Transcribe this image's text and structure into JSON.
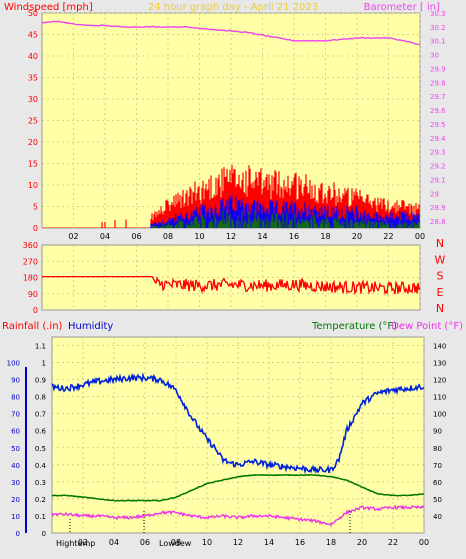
{
  "colors": {
    "plot_bg": "#ffffa8",
    "page_bg": "#e8e8e8",
    "grid": "#d6c27a",
    "wind_gust": "#ff0000",
    "wind_avg": "#0000ff",
    "wind_low": "#008000",
    "barometer": "#ee44ee",
    "direction": "#ff0000",
    "humidity": "#0022dd",
    "temperature": "#007700",
    "dewpoint": "#ee33ee",
    "title": "#eecc33",
    "rainfall_axis": "#0000cc"
  },
  "header": {
    "windspeed_label": "Windspeed [mph]",
    "title": "24 hour graph day - April 21 2023",
    "barometer_label": "Barometer [ in]"
  },
  "panel3_header": {
    "rainfall_label": "Rainfall (.in)",
    "humidity_label": "Humidity",
    "temperature_label": "Temperature (°F)",
    "dewpoint_label": "Dew Point (°F)"
  },
  "markers": {
    "high_temp_label": "Hightemp",
    "low_dew_label": "Lowdew"
  },
  "chart_data": [
    {
      "type": "line",
      "name": "wind-barometer",
      "xlabel": "",
      "x_ticks": [
        "02",
        "04",
        "06",
        "08",
        "10",
        "12",
        "14",
        "16",
        "18",
        "20",
        "22",
        "00"
      ],
      "y_left_ticks": [
        0,
        5,
        10,
        15,
        20,
        25,
        30,
        35,
        40,
        45,
        50
      ],
      "ylim_left": [
        0,
        50
      ],
      "y_right_ticks": [
        "28.8",
        "28.9",
        "29",
        "29.1",
        "29.2",
        "29.3",
        "29.4",
        "29.5",
        "29.6",
        "29.7",
        "29.8",
        "29.9",
        "30",
        "30.1",
        "30.2",
        "30.3"
      ],
      "ylim_right": [
        28.75,
        30.3
      ],
      "barometer": {
        "hours": [
          0,
          1,
          2,
          3,
          4,
          5,
          6,
          7,
          8,
          9,
          10,
          11,
          12,
          13,
          14,
          15,
          16,
          17,
          18,
          19,
          20,
          21,
          22,
          23,
          24
        ],
        "values": [
          30.23,
          30.24,
          30.22,
          30.21,
          30.21,
          30.2,
          30.2,
          30.2,
          30.2,
          30.2,
          30.19,
          30.18,
          30.17,
          30.16,
          30.14,
          30.12,
          30.1,
          30.1,
          30.1,
          30.11,
          30.12,
          30.12,
          30.12,
          30.1,
          30.07
        ]
      },
      "wind_gust_envelope": {
        "hours": [
          0,
          2,
          4,
          6,
          7,
          8,
          9,
          10,
          11,
          12,
          13,
          14,
          15,
          16,
          17,
          18,
          19,
          20,
          21,
          22,
          23,
          24
        ],
        "values": [
          1,
          1,
          1,
          1,
          3,
          6,
          8,
          10,
          12,
          13,
          13,
          12,
          12,
          12,
          11,
          10,
          9,
          8,
          7,
          6,
          6,
          5
        ]
      },
      "wind_avg_envelope": {
        "hours": [
          0,
          6,
          7,
          8,
          9,
          10,
          11,
          12,
          13,
          14,
          15,
          16,
          17,
          18,
          19,
          20,
          21,
          22,
          23,
          24
        ],
        "values": [
          0,
          0,
          1,
          2,
          3,
          4,
          5,
          6,
          6,
          5,
          5,
          5,
          5,
          4,
          4,
          4,
          3,
          3,
          3,
          3
        ]
      }
    },
    {
      "type": "line",
      "name": "wind-direction",
      "y_left_ticks": [
        0,
        90,
        180,
        270,
        360
      ],
      "ylim_left": [
        0,
        360
      ],
      "y_right_labels": [
        "N",
        "W",
        "S",
        "E",
        "N"
      ],
      "direction": {
        "hours": [
          0,
          1,
          2,
          3,
          4,
          5,
          6,
          7,
          7.2,
          8,
          10,
          12,
          14,
          16,
          18,
          20,
          22,
          24
        ],
        "values": [
          185,
          185,
          185,
          185,
          185,
          185,
          185,
          185,
          150,
          140,
          135,
          140,
          135,
          140,
          130,
          125,
          120,
          125
        ]
      }
    },
    {
      "type": "line",
      "name": "humidity-temperature",
      "y_left_ticks": [
        0,
        0.1,
        0.2,
        0.3,
        0.4,
        0.5,
        0.6,
        0.7,
        0.8,
        0.9,
        1,
        1.1
      ],
      "ylim_left": [
        0,
        1.15
      ],
      "y_far_left_ticks": [
        0,
        10,
        20,
        30,
        40,
        50,
        60,
        70,
        80,
        90,
        100
      ],
      "y_right_ticks": [
        40,
        50,
        60,
        70,
        80,
        90,
        100,
        110,
        120,
        130,
        140
      ],
      "ylim_right": [
        30,
        145
      ],
      "humidity": {
        "hours": [
          0,
          0.5,
          1,
          2,
          3,
          4,
          5,
          6,
          7,
          8,
          9,
          10,
          10.5,
          11,
          11.5,
          12,
          13,
          14,
          15,
          16,
          17,
          18,
          18.5,
          19,
          20,
          21,
          22,
          23,
          24
        ],
        "values": [
          86,
          85,
          85,
          87,
          89,
          90,
          91,
          91,
          90,
          84,
          68,
          55,
          50,
          43,
          41,
          40,
          42,
          40,
          39,
          38,
          37,
          37,
          43,
          60,
          76,
          82,
          84,
          85,
          86
        ]
      },
      "temperature": {
        "hours": [
          0,
          1,
          2,
          3,
          4,
          5,
          6,
          7,
          8,
          9,
          10,
          11,
          12,
          13,
          14,
          15,
          16,
          17,
          18,
          19,
          20,
          21,
          22,
          23,
          24
        ],
        "values": [
          52,
          52,
          51,
          50,
          49,
          49,
          49,
          49,
          51,
          55,
          59,
          61,
          63,
          64,
          64,
          64,
          64,
          64,
          63,
          61,
          57,
          53,
          52,
          52,
          53
        ]
      },
      "dewpoint": {
        "hours": [
          0,
          1,
          2,
          3,
          4,
          5,
          6,
          7,
          8,
          9,
          10,
          11,
          12,
          13,
          14,
          15,
          16,
          17,
          18,
          19,
          20,
          21,
          22,
          23,
          24
        ],
        "values": [
          41,
          41,
          40,
          40,
          39,
          39,
          40,
          42,
          42,
          40,
          39,
          40,
          39,
          40,
          40,
          39,
          38,
          37,
          35,
          42,
          45,
          44,
          45,
          45,
          45
        ]
      }
    }
  ]
}
